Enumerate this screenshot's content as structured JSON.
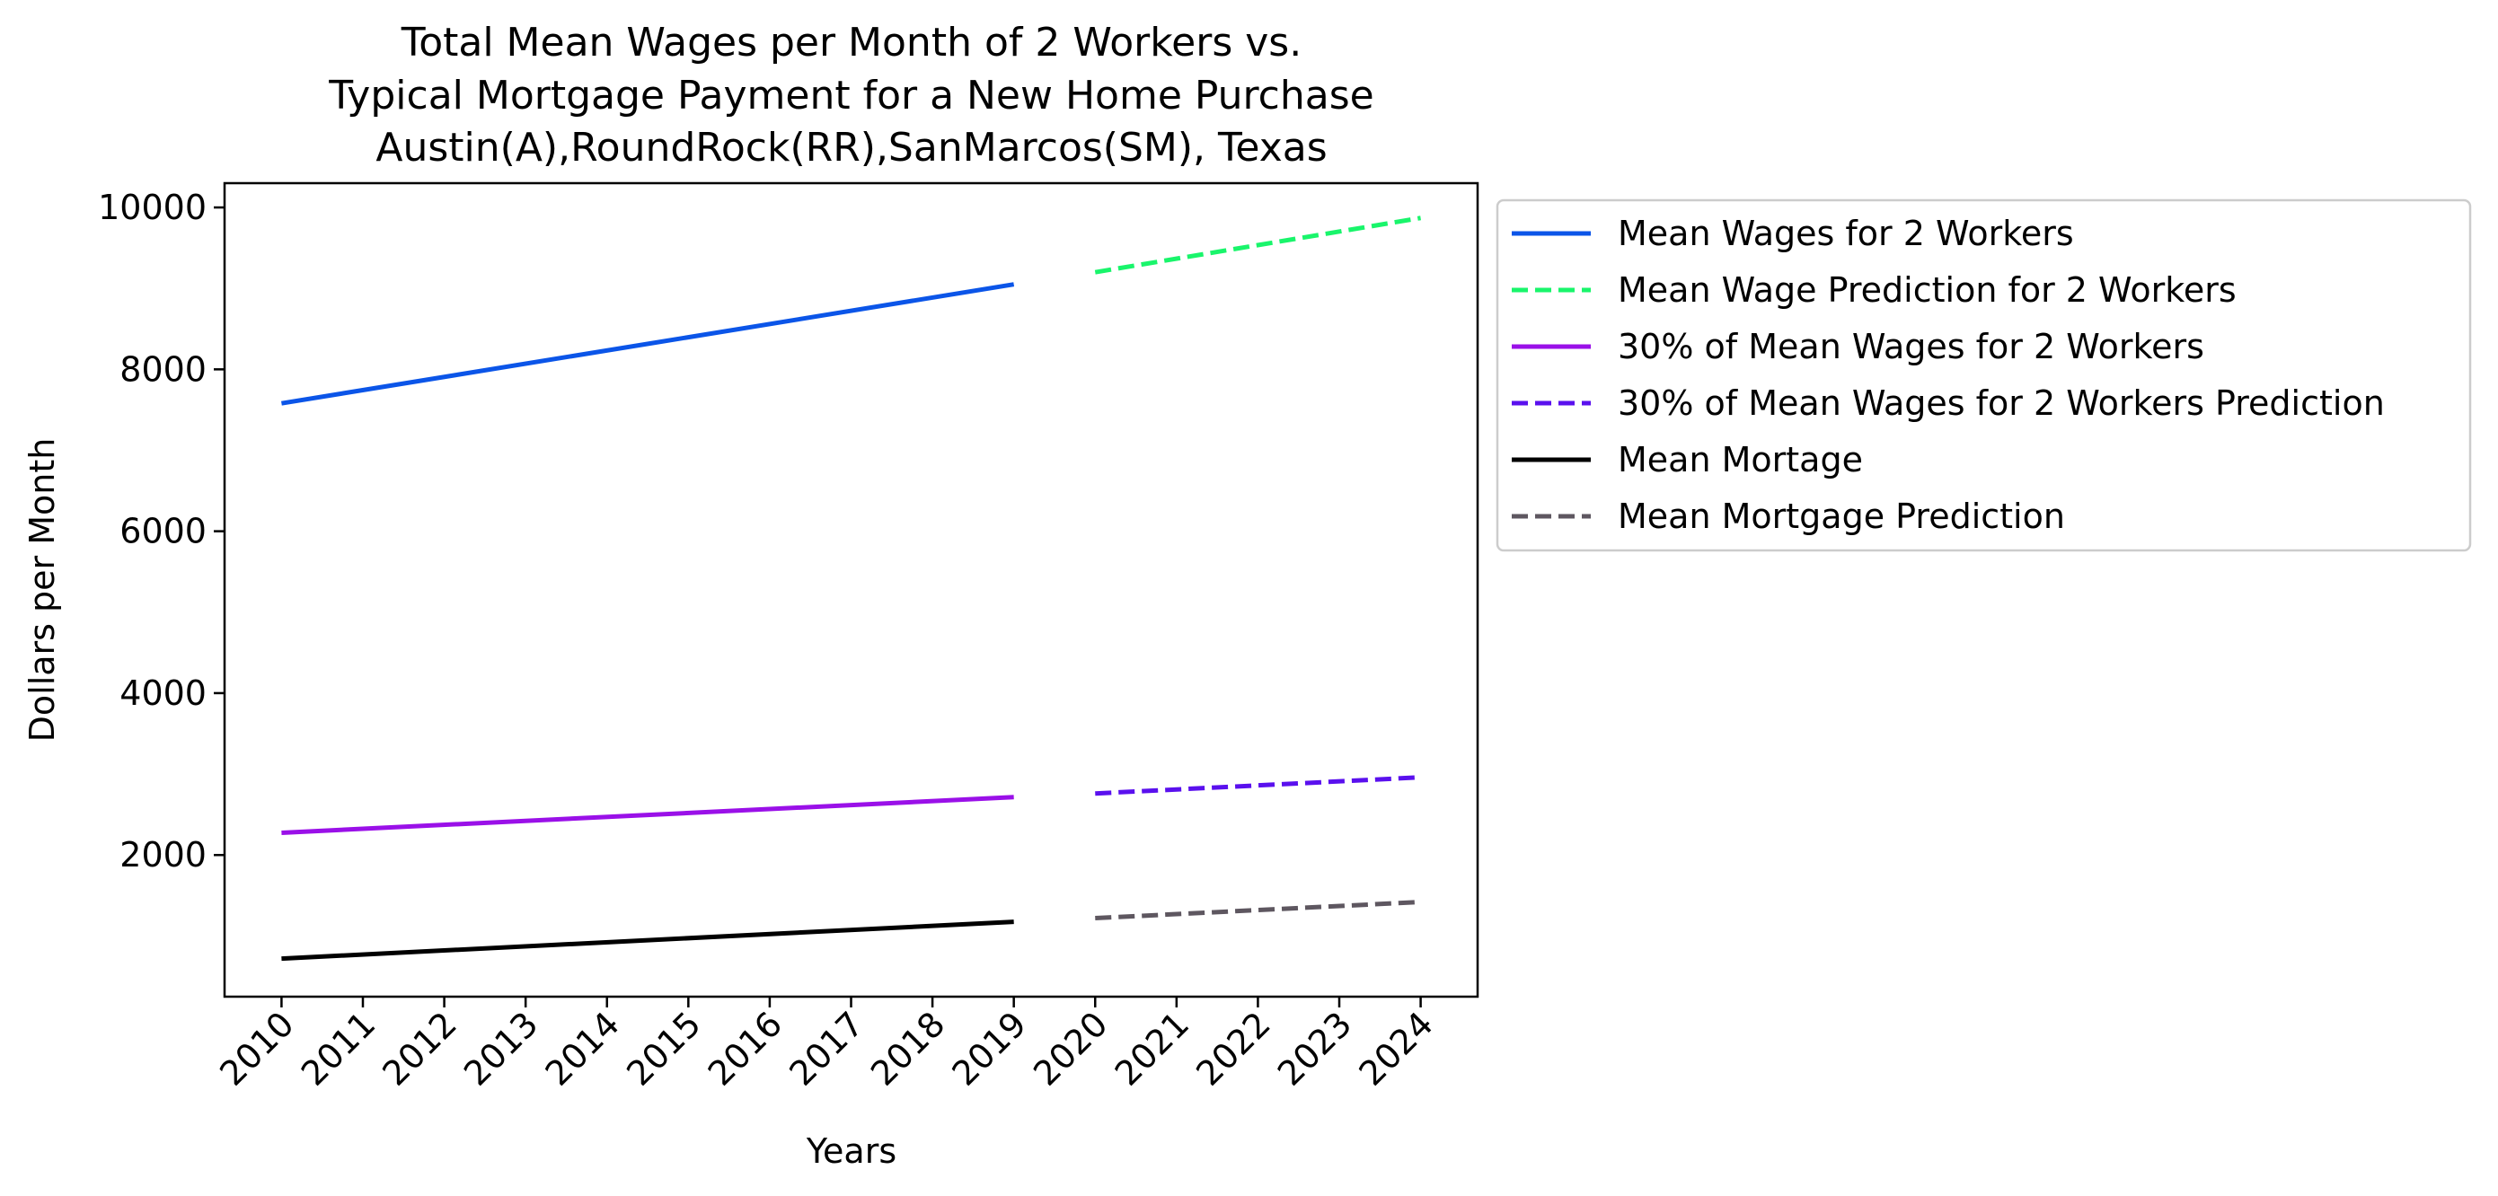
{
  "chart_data": {
    "type": "line",
    "title_lines": [
      "Total Mean Wages per Month of 2 Workers vs.",
      "Typical Mortgage Payment for a New Home Purchase",
      "Austin(A),RoundRock(RR),SanMarcos(SM), Texas"
    ],
    "xlabel": "Years",
    "ylabel": "Dollars per Month",
    "x_ticks": [
      "2010",
      "2011",
      "2012",
      "2013",
      "2014",
      "2015",
      "2016",
      "2017",
      "2018",
      "2019",
      "2020",
      "2021",
      "2022",
      "2023",
      "2024"
    ],
    "y_ticks": [
      2000,
      4000,
      6000,
      8000,
      10000
    ],
    "xlim": [
      2009.3,
      2024.7
    ],
    "ylim": [
      250,
      10300
    ],
    "grid": false,
    "legend_position": "outside right, top",
    "series": [
      {
        "name": "Mean Wages for 2 Workers",
        "color": "#0b55e8",
        "style": "solid",
        "x": [
          2010,
          2019
        ],
        "y": [
          7580,
          9050
        ]
      },
      {
        "name": "Mean Wage Prediction for 2 Workers",
        "color": "#19f56b",
        "style": "dashed",
        "x": [
          2020,
          2024
        ],
        "y": [
          9200,
          9870
        ]
      },
      {
        "name": "30% of Mean Wages for 2 Workers",
        "color": "#9a10e8",
        "style": "solid",
        "x": [
          2010,
          2019
        ],
        "y": [
          2275,
          2715
        ]
      },
      {
        "name": "30% of Mean Wages for 2 Workers Prediction",
        "color": "#5a10ee",
        "style": "dashed",
        "x": [
          2020,
          2024
        ],
        "y": [
          2760,
          2960
        ]
      },
      {
        "name": "Mean Mortage",
        "color": "#000000",
        "style": "solid",
        "x": [
          2010,
          2019
        ],
        "y": [
          720,
          1175
        ]
      },
      {
        "name": "Mean Mortgage Prediction",
        "color": "#5e5760",
        "style": "dashed",
        "x": [
          2020,
          2024
        ],
        "y": [
          1220,
          1420
        ]
      }
    ]
  }
}
